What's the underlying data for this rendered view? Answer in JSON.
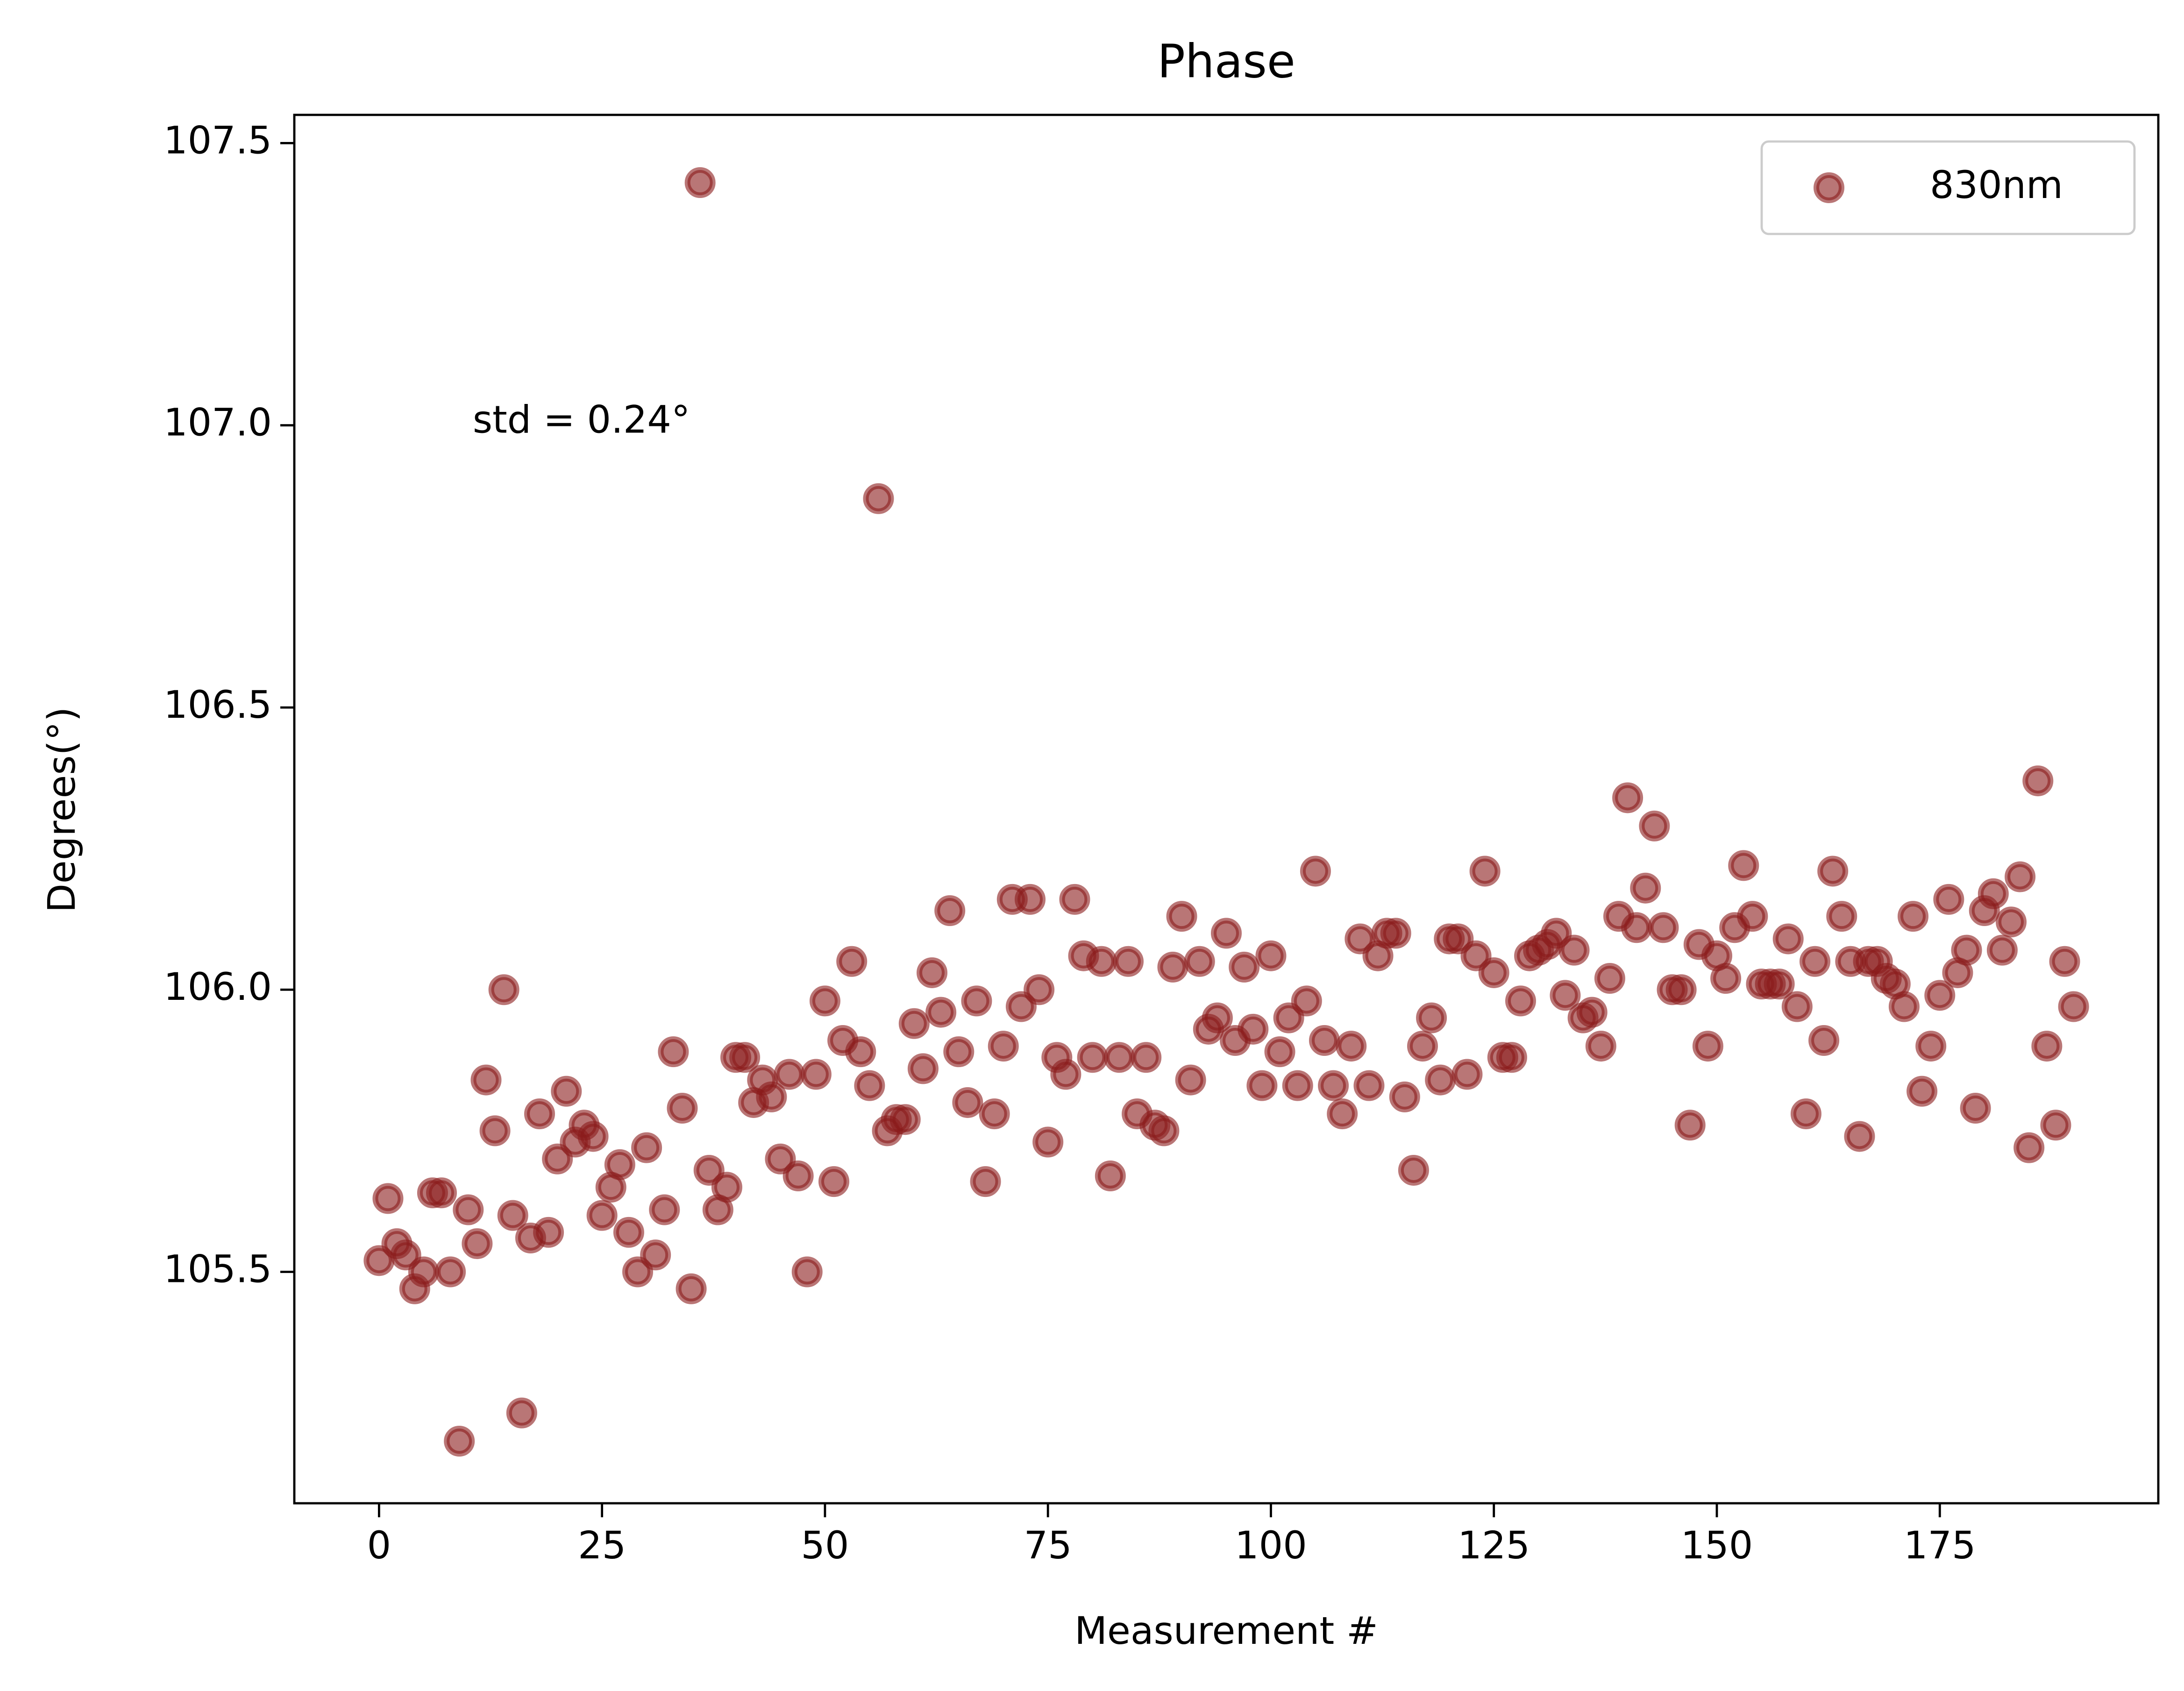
{
  "chart_data": {
    "type": "scatter",
    "title": "Phase",
    "x_label": "Measurement #",
    "y_label": "Degrees(°)",
    "annotations": [
      {
        "text": "std = 0.24°",
        "x": 10.5,
        "y": 107.0
      }
    ],
    "legend": "upper right",
    "grid": false,
    "xlim": [
      -9.5,
      199.5
    ],
    "ylim": [
      105.09,
      107.55
    ],
    "xticks": [
      0,
      25,
      50,
      75,
      100,
      125,
      150,
      175
    ],
    "yticks": [
      105.5,
      {
        "value": 106,
        "label": "106.0"
      },
      106.5,
      {
        "value": 107,
        "label": "107.0"
      },
      107.5
    ],
    "x": [
      0,
      1,
      2,
      3,
      4,
      5,
      6,
      7,
      8,
      9,
      10,
      11,
      12,
      13,
      14,
      15,
      16,
      17,
      18,
      19,
      20,
      21,
      22,
      23,
      24,
      25,
      26,
      27,
      28,
      29,
      30,
      31,
      32,
      33,
      34,
      35,
      36,
      37,
      38,
      39,
      40,
      41,
      42,
      43,
      44,
      45,
      46,
      47,
      48,
      49,
      50,
      51,
      52,
      53,
      54,
      55,
      56,
      57,
      58,
      59,
      60,
      61,
      62,
      63,
      64,
      65,
      66,
      67,
      68,
      69,
      70,
      71,
      72,
      73,
      74,
      75,
      76,
      77,
      78,
      79,
      80,
      81,
      82,
      83,
      84,
      85,
      86,
      87,
      88,
      89,
      90,
      91,
      92,
      93,
      94,
      95,
      96,
      97,
      98,
      99,
      100,
      101,
      102,
      103,
      104,
      105,
      106,
      107,
      108,
      109,
      110,
      111,
      112,
      113,
      114,
      115,
      116,
      117,
      118,
      119,
      120,
      121,
      122,
      123,
      124,
      125,
      126,
      127,
      128,
      129,
      130,
      131,
      132,
      133,
      134,
      135,
      136,
      137,
      138,
      139,
      140,
      141,
      142,
      143,
      144,
      145,
      146,
      147,
      148,
      149,
      150,
      151,
      152,
      153,
      154,
      155,
      156,
      157,
      158,
      159,
      160,
      161,
      162,
      163,
      164,
      165,
      166,
      167,
      168,
      169,
      170,
      171,
      172,
      173,
      174,
      175,
      176,
      177,
      178,
      179,
      180,
      181,
      182,
      183,
      184,
      185,
      186,
      187,
      188,
      189,
      190
    ],
    "series": [
      {
        "name": "830nm",
        "color": "#8b1a1a",
        "values": [
          105.52,
          105.63,
          105.55,
          105.53,
          105.47,
          105.5,
          105.64,
          105.64,
          105.5,
          105.2,
          105.61,
          105.55,
          105.84,
          105.75,
          106.0,
          105.6,
          105.25,
          105.56,
          105.78,
          105.57,
          105.7,
          105.82,
          105.73,
          105.76,
          105.74,
          105.6,
          105.65,
          105.69,
          105.57,
          105.5,
          105.72,
          105.53,
          105.61,
          105.89,
          105.79,
          105.47,
          107.43,
          105.68,
          105.61,
          105.65,
          105.88,
          105.88,
          105.8,
          105.84,
          105.81,
          105.7,
          105.85,
          105.67,
          105.5,
          105.85,
          105.98,
          105.66,
          105.91,
          106.05,
          105.89,
          105.83,
          106.87,
          105.75,
          105.77,
          105.77,
          105.94,
          105.86,
          106.03,
          105.96,
          106.14,
          105.89,
          105.8,
          105.98,
          105.66,
          105.78,
          105.9,
          106.16,
          105.97,
          106.16,
          106.0,
          105.73,
          105.88,
          105.85,
          106.16,
          106.06,
          105.88,
          106.05,
          105.67,
          105.88,
          106.05,
          105.78,
          105.88,
          105.76,
          105.75,
          106.04,
          106.13,
          105.84,
          106.05,
          105.93,
          105.95,
          106.1,
          105.91,
          106.04,
          105.93,
          105.83,
          106.06,
          105.89,
          105.95,
          105.83,
          105.98,
          106.21,
          105.91,
          105.83,
          105.78,
          105.9,
          106.09,
          105.83,
          106.06,
          106.1,
          106.1,
          105.81,
          105.68,
          105.9,
          105.95,
          105.84,
          106.09,
          106.09,
          105.85,
          106.06,
          106.21,
          106.03,
          105.88,
          105.88,
          105.98,
          106.06,
          106.07,
          106.08,
          106.1,
          105.99,
          106.07,
          105.95,
          105.96,
          105.9,
          106.02,
          106.13,
          106.34,
          106.11,
          106.18,
          106.29,
          106.11,
          106.0,
          106.0,
          105.76,
          106.08,
          105.9,
          106.06,
          106.02,
          106.11,
          106.22,
          106.13,
          106.01,
          106.01,
          106.01,
          106.09,
          105.97,
          105.78,
          106.05,
          105.91,
          106.21,
          106.13,
          106.05,
          105.74,
          106.05,
          106.05,
          106.02,
          106.01,
          105.97,
          106.13,
          105.82,
          105.9,
          105.99,
          106.16,
          106.03,
          106.07,
          105.79,
          106.14,
          106.17,
          106.07,
          106.12,
          106.2,
          105.72,
          106.37,
          105.9,
          105.76,
          106.05,
          105.97
        ]
      }
    ]
  }
}
